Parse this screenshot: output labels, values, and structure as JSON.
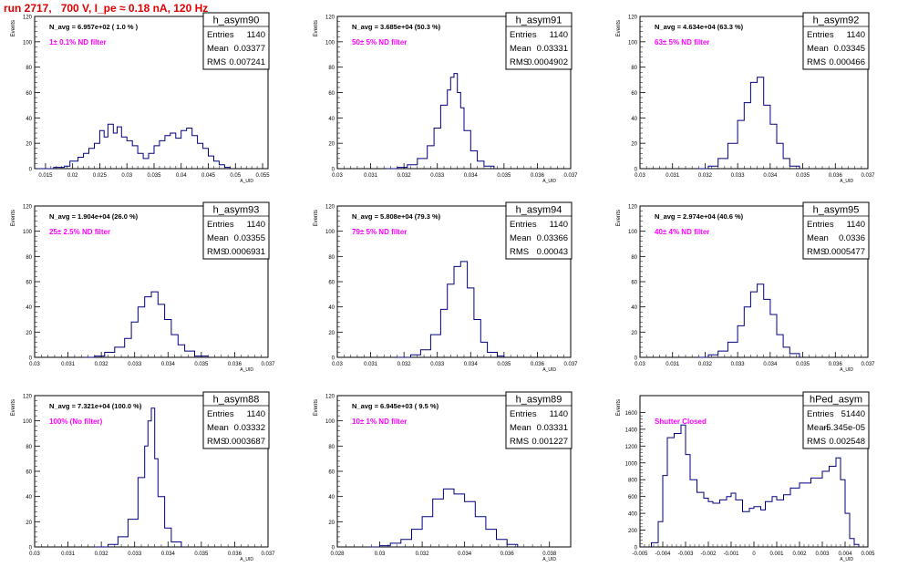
{
  "page_title": "run 2717,   700 V, I_pe ≈ 0.18 nA, 120 Hz",
  "colors": {
    "line": "#00007f",
    "annotation": "#ff00ff",
    "title": "#e00000"
  },
  "chart_data": [
    {
      "type": "histogram",
      "name": "h_asym90",
      "nlabel": "N_avg = 6.957e+02 ( 1.0 % )",
      "filter": "1± 0.1% ND filter",
      "stats": {
        "Entries": "1140",
        "Mean": "0.03377",
        "RMS": "0.007241"
      },
      "ylabel": "Events",
      "xlabel": "A_UID",
      "xlim": [
        0.013,
        0.056
      ],
      "ylim": [
        0,
        120
      ],
      "xticks": [
        0.015,
        0.02,
        0.025,
        0.03,
        0.035,
        0.04,
        0.045,
        0.05,
        0.055
      ],
      "yticks": [
        0,
        20,
        40,
        60,
        80,
        100,
        120
      ],
      "bins": [
        [
          0.0135,
          0
        ],
        [
          0.0155,
          0
        ],
        [
          0.0165,
          1
        ],
        [
          0.0185,
          2
        ],
        [
          0.0195,
          6
        ],
        [
          0.021,
          9
        ],
        [
          0.022,
          12
        ],
        [
          0.023,
          16
        ],
        [
          0.024,
          20
        ],
        [
          0.025,
          30
        ],
        [
          0.0258,
          25
        ],
        [
          0.0265,
          35
        ],
        [
          0.0275,
          28
        ],
        [
          0.0282,
          33
        ],
        [
          0.029,
          25
        ],
        [
          0.03,
          22
        ],
        [
          0.031,
          18
        ],
        [
          0.032,
          12
        ],
        [
          0.033,
          8
        ],
        [
          0.034,
          12
        ],
        [
          0.035,
          18
        ],
        [
          0.036,
          22
        ],
        [
          0.037,
          26
        ],
        [
          0.038,
          28
        ],
        [
          0.039,
          24
        ],
        [
          0.04,
          30
        ],
        [
          0.041,
          32
        ],
        [
          0.042,
          26
        ],
        [
          0.043,
          20
        ],
        [
          0.044,
          16
        ],
        [
          0.045,
          10
        ],
        [
          0.046,
          6
        ],
        [
          0.047,
          3
        ],
        [
          0.048,
          1
        ],
        [
          0.049,
          0
        ]
      ]
    },
    {
      "type": "histogram",
      "name": "h_asym91",
      "nlabel": "N_avg = 3.685e+04 (50.3 %)",
      "filter": "50± 5% ND filter",
      "stats": {
        "Entries": "1140",
        "Mean": "0.03331",
        "RMS": "0.0004902"
      },
      "ylabel": "Events",
      "xlabel": "A_UID",
      "xlim": [
        0.03,
        0.037
      ],
      "ylim": [
        0,
        120
      ],
      "xticks": [
        0.03,
        0.031,
        0.032,
        0.033,
        0.034,
        0.035,
        0.036,
        0.037
      ],
      "yticks": [
        0,
        20,
        40,
        60,
        80,
        100,
        120
      ],
      "bins": [
        [
          0.0315,
          0
        ],
        [
          0.0318,
          1
        ],
        [
          0.0321,
          3
        ],
        [
          0.0324,
          8
        ],
        [
          0.0327,
          18
        ],
        [
          0.0329,
          32
        ],
        [
          0.0331,
          50
        ],
        [
          0.0333,
          62
        ],
        [
          0.0334,
          72
        ],
        [
          0.0335,
          75
        ],
        [
          0.0336,
          60
        ],
        [
          0.0337,
          48
        ],
        [
          0.0338,
          30
        ],
        [
          0.034,
          14
        ],
        [
          0.0342,
          6
        ],
        [
          0.0344,
          2
        ],
        [
          0.0347,
          0
        ]
      ]
    },
    {
      "type": "histogram",
      "name": "h_asym92",
      "nlabel": "N_avg = 4.634e+04 (63.3 %)",
      "filter": "63± 5% ND filter",
      "stats": {
        "Entries": "1140",
        "Mean": "0.03345",
        "RMS": "0.000466"
      },
      "ylabel": "Events",
      "xlabel": "A_UID",
      "xlim": [
        0.03,
        0.037
      ],
      "ylim": [
        0,
        120
      ],
      "xticks": [
        0.03,
        0.031,
        0.032,
        0.033,
        0.034,
        0.035,
        0.036,
        0.037
      ],
      "yticks": [
        0,
        20,
        40,
        60,
        80,
        100,
        120
      ],
      "bins": [
        [
          0.0318,
          0
        ],
        [
          0.0321,
          2
        ],
        [
          0.0324,
          8
        ],
        [
          0.0327,
          20
        ],
        [
          0.033,
          38
        ],
        [
          0.0332,
          52
        ],
        [
          0.0334,
          68
        ],
        [
          0.0336,
          72
        ],
        [
          0.0338,
          50
        ],
        [
          0.034,
          35
        ],
        [
          0.0342,
          20
        ],
        [
          0.0344,
          8
        ],
        [
          0.0346,
          2
        ],
        [
          0.0349,
          0
        ]
      ]
    },
    {
      "type": "histogram",
      "name": "h_asym93",
      "nlabel": "N_avg = 1.904e+04 (26.0 %)",
      "filter": "25± 2.5% ND filter",
      "stats": {
        "Entries": "1140",
        "Mean": "0.03355",
        "RMS": "0.0006931"
      },
      "ylabel": "Events",
      "xlabel": "A_UID",
      "xlim": [
        0.03,
        0.037
      ],
      "ylim": [
        0,
        120
      ],
      "xticks": [
        0.03,
        0.031,
        0.032,
        0.033,
        0.034,
        0.035,
        0.036,
        0.037
      ],
      "yticks": [
        0,
        20,
        40,
        60,
        80,
        100,
        120
      ],
      "bins": [
        [
          0.0315,
          0
        ],
        [
          0.0318,
          1
        ],
        [
          0.0321,
          4
        ],
        [
          0.0324,
          8
        ],
        [
          0.0327,
          15
        ],
        [
          0.0329,
          28
        ],
        [
          0.0331,
          40
        ],
        [
          0.0333,
          48
        ],
        [
          0.0335,
          52
        ],
        [
          0.0337,
          42
        ],
        [
          0.0339,
          30
        ],
        [
          0.0341,
          18
        ],
        [
          0.0343,
          10
        ],
        [
          0.0345,
          5
        ],
        [
          0.0348,
          1
        ],
        [
          0.0352,
          0
        ]
      ]
    },
    {
      "type": "histogram",
      "name": "h_asym94",
      "nlabel": "N_avg = 5.808e+04 (79.3 %)",
      "filter": "79± 5% ND filter",
      "stats": {
        "Entries": "1140",
        "Mean": "0.03366",
        "RMS": "0.00043"
      },
      "ylabel": "Events",
      "xlabel": "A_UID",
      "xlim": [
        0.03,
        0.037
      ],
      "ylim": [
        0,
        120
      ],
      "xticks": [
        0.03,
        0.031,
        0.032,
        0.033,
        0.034,
        0.035,
        0.036,
        0.037
      ],
      "yticks": [
        0,
        20,
        40,
        60,
        80,
        100,
        120
      ],
      "bins": [
        [
          0.0318,
          0
        ],
        [
          0.0322,
          2
        ],
        [
          0.0325,
          6
        ],
        [
          0.0328,
          18
        ],
        [
          0.0331,
          38
        ],
        [
          0.0333,
          58
        ],
        [
          0.0335,
          72
        ],
        [
          0.0337,
          76
        ],
        [
          0.0339,
          55
        ],
        [
          0.0341,
          30
        ],
        [
          0.0343,
          12
        ],
        [
          0.0345,
          4
        ],
        [
          0.0348,
          1
        ],
        [
          0.035,
          0
        ]
      ]
    },
    {
      "type": "histogram",
      "name": "h_asym95",
      "nlabel": "N_avg = 2.974e+04 (40.6 %)",
      "filter": "40± 4% ND filter",
      "stats": {
        "Entries": "1140",
        "Mean": "0.0336",
        "RMS": "0.0005477"
      },
      "ylabel": "Events",
      "xlabel": "A_UID",
      "xlim": [
        0.03,
        0.037
      ],
      "ylim": [
        0,
        120
      ],
      "xticks": [
        0.03,
        0.031,
        0.032,
        0.033,
        0.034,
        0.035,
        0.036,
        0.037
      ],
      "yticks": [
        0,
        20,
        40,
        60,
        80,
        100,
        120
      ],
      "bins": [
        [
          0.0318,
          0
        ],
        [
          0.0321,
          2
        ],
        [
          0.0324,
          5
        ],
        [
          0.0327,
          12
        ],
        [
          0.033,
          25
        ],
        [
          0.0332,
          40
        ],
        [
          0.0334,
          52
        ],
        [
          0.0336,
          58
        ],
        [
          0.0338,
          46
        ],
        [
          0.034,
          34
        ],
        [
          0.0342,
          18
        ],
        [
          0.0344,
          8
        ],
        [
          0.0346,
          3
        ],
        [
          0.0349,
          0
        ]
      ]
    },
    {
      "type": "histogram",
      "name": "h_asym88",
      "nlabel": "N_avg = 7.321e+04 (100.0 %)",
      "filter": "100% (No filter)",
      "stats": {
        "Entries": "1140",
        "Mean": "0.03332",
        "RMS": "0.0003687"
      },
      "ylabel": "Events",
      "xlabel": "A_UID",
      "xlim": [
        0.03,
        0.037
      ],
      "ylim": [
        0,
        120
      ],
      "xticks": [
        0.03,
        0.031,
        0.032,
        0.033,
        0.034,
        0.035,
        0.036,
        0.037
      ],
      "yticks": [
        0,
        20,
        40,
        60,
        80,
        100,
        120
      ],
      "bins": [
        [
          0.0318,
          0
        ],
        [
          0.0322,
          2
        ],
        [
          0.0325,
          8
        ],
        [
          0.0328,
          22
        ],
        [
          0.0331,
          55
        ],
        [
          0.0333,
          80
        ],
        [
          0.0334,
          100
        ],
        [
          0.0335,
          110
        ],
        [
          0.0336,
          70
        ],
        [
          0.0337,
          40
        ],
        [
          0.0339,
          15
        ],
        [
          0.0341,
          4
        ],
        [
          0.0344,
          0
        ]
      ]
    },
    {
      "type": "histogram",
      "name": "h_asym89",
      "nlabel": "N_avg = 6.945e+03 ( 9.5 %)",
      "filter": "10± 1% ND filter",
      "stats": {
        "Entries": "1140",
        "Mean": "0.03331",
        "RMS": "0.001227"
      },
      "ylabel": "Events",
      "xlabel": "A_UID",
      "xlim": [
        0.028,
        0.039
      ],
      "ylim": [
        0,
        120
      ],
      "xticks": [
        0.028,
        0.03,
        0.032,
        0.034,
        0.036,
        0.038
      ],
      "yticks": [
        0,
        20,
        40,
        60,
        80,
        100,
        120
      ],
      "bins": [
        [
          0.0295,
          0
        ],
        [
          0.03,
          1
        ],
        [
          0.0305,
          3
        ],
        [
          0.031,
          6
        ],
        [
          0.0315,
          14
        ],
        [
          0.032,
          24
        ],
        [
          0.0325,
          38
        ],
        [
          0.033,
          46
        ],
        [
          0.0335,
          42
        ],
        [
          0.034,
          36
        ],
        [
          0.0345,
          24
        ],
        [
          0.035,
          14
        ],
        [
          0.0355,
          6
        ],
        [
          0.036,
          2
        ],
        [
          0.0365,
          0
        ]
      ]
    },
    {
      "type": "histogram",
      "name": "hPed_asym",
      "nlabel": "",
      "filter": "Shutter Closed",
      "stats": {
        "Entries": "51440",
        "Mean": "-5.345e-05",
        "RMS": "0.002548"
      },
      "ylabel": "Events",
      "xlabel": "A_UID",
      "xlim": [
        -0.005,
        0.005
      ],
      "ylim": [
        0,
        1800
      ],
      "xticks": [
        -0.005,
        -0.004,
        -0.003,
        -0.002,
        -0.001,
        0,
        0.001,
        0.002,
        0.003,
        0.004,
        0.005
      ],
      "yticks": [
        0,
        200,
        400,
        600,
        800,
        1000,
        1200,
        1400,
        1600
      ],
      "bins": [
        [
          -0.0045,
          50
        ],
        [
          -0.0042,
          300
        ],
        [
          -0.004,
          850
        ],
        [
          -0.0038,
          1300
        ],
        [
          -0.0035,
          1350
        ],
        [
          -0.0032,
          1450
        ],
        [
          -0.003,
          1100
        ],
        [
          -0.0028,
          800
        ],
        [
          -0.0025,
          650
        ],
        [
          -0.0022,
          580
        ],
        [
          -0.002,
          540
        ],
        [
          -0.0018,
          520
        ],
        [
          -0.0015,
          560
        ],
        [
          -0.0012,
          600
        ],
        [
          -0.001,
          640
        ],
        [
          -0.0008,
          560
        ],
        [
          -0.0005,
          420
        ],
        [
          -0.0002,
          460
        ],
        [
          0,
          480
        ],
        [
          0.0003,
          440
        ],
        [
          0.0005,
          540
        ],
        [
          0.0008,
          600
        ],
        [
          0.001,
          560
        ],
        [
          0.0013,
          620
        ],
        [
          0.0016,
          700
        ],
        [
          0.002,
          760
        ],
        [
          0.0025,
          820
        ],
        [
          0.003,
          900
        ],
        [
          0.0033,
          960
        ],
        [
          0.0036,
          1060
        ],
        [
          0.0038,
          800
        ],
        [
          0.004,
          400
        ],
        [
          0.0042,
          100
        ],
        [
          0.0044,
          30
        ],
        [
          0.0046,
          0
        ]
      ]
    }
  ]
}
